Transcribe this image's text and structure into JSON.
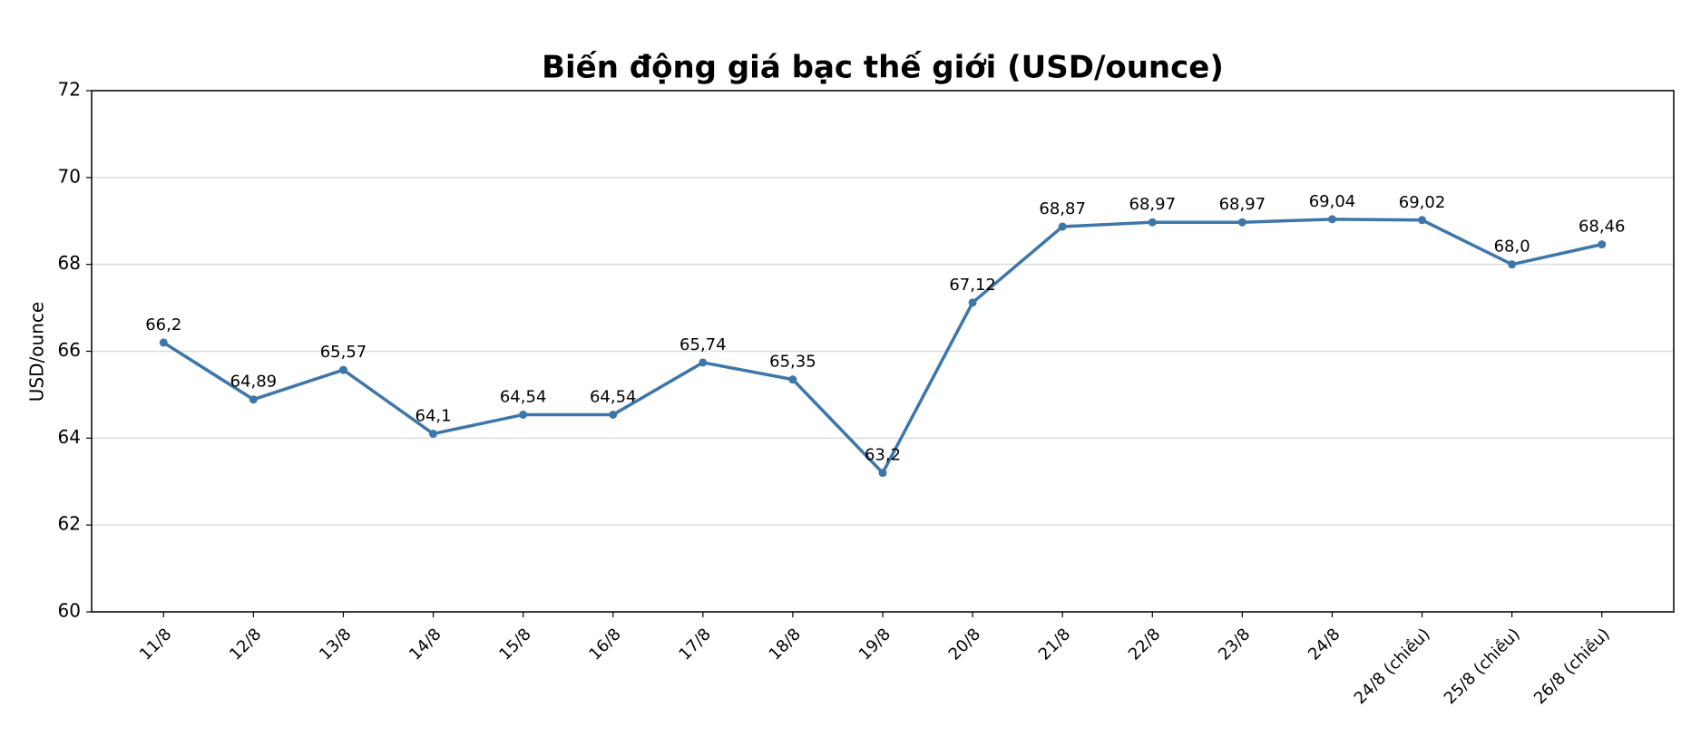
{
  "chart_data": {
    "type": "line",
    "title": "Biến động giá bạc thế giới (USD/ounce)",
    "y_label": "USD/ounce",
    "categories": [
      "11/8",
      "12/8",
      "13/8",
      "14/8",
      "15/8",
      "16/8",
      "17/8",
      "18/8",
      "19/8",
      "20/8",
      "21/8",
      "22/8",
      "23/8",
      "24/8",
      "24/8 (chiều)",
      "25/8 (chiều)",
      "26/8 (chiều)"
    ],
    "series": [
      {
        "name": "USD/ounce",
        "color": "#3d76aa",
        "values": [
          66.2,
          64.89,
          65.57,
          64.1,
          64.54,
          64.54,
          65.74,
          65.35,
          63.2,
          67.12,
          68.87,
          68.97,
          68.97,
          69.04,
          69.02,
          68.0,
          68.46
        ],
        "value_labels": [
          "66,2",
          "64,89",
          "65,57",
          "64,1",
          "64,54",
          "64,54",
          "65,74",
          "65,35",
          "63,2",
          "67,12",
          "68,87",
          "68,97",
          "68,97",
          "69,04",
          "69,02",
          "68,0",
          "68,46"
        ]
      }
    ],
    "ylim": [
      60,
      72
    ],
    "yticks": [
      60,
      62,
      64,
      66,
      68,
      70,
      72
    ],
    "grid": true
  }
}
